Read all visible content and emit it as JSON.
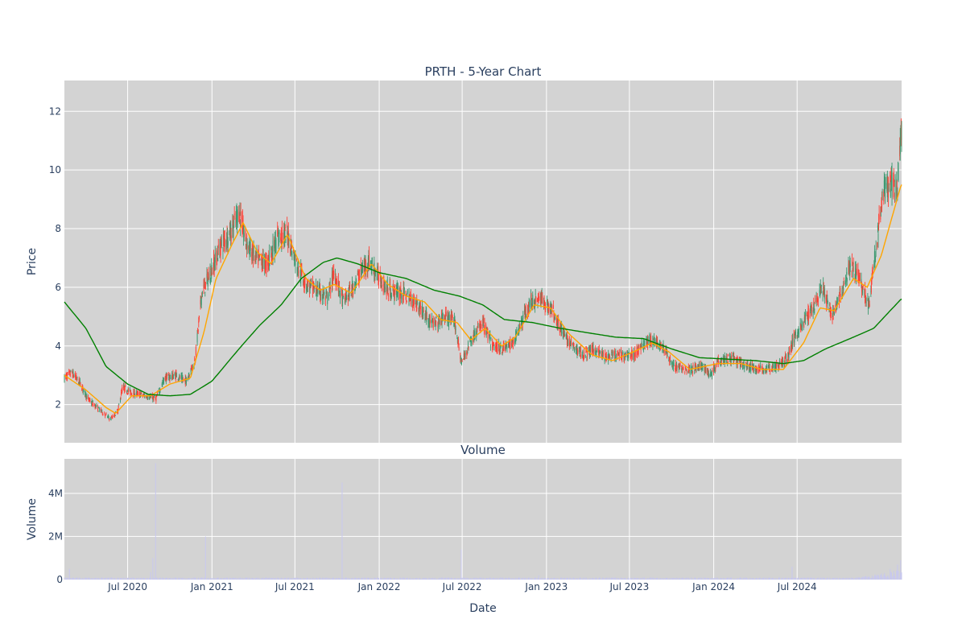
{
  "chart_data": {
    "type": "candlestick",
    "title": "PRTH - 5-Year Chart",
    "price_panel": {
      "ylabel": "Price",
      "ylim": [
        0.7,
        13.05
      ],
      "yticks": [
        2,
        4,
        6,
        8,
        10,
        12
      ],
      "background": "#d3d3d3",
      "grid": true,
      "up_color": "#3d9970",
      "down_color": "#ff4136",
      "ma_short_color": "#ffa500",
      "ma_long_color": "#008000",
      "anchors": [
        [
          "2020-02-14",
          2.9
        ],
        [
          "2020-03-01",
          3.1
        ],
        [
          "2020-03-20",
          2.7
        ],
        [
          "2020-04-05",
          2.2
        ],
        [
          "2020-04-25",
          1.9
        ],
        [
          "2020-05-10",
          1.7
        ],
        [
          "2020-05-25",
          1.5
        ],
        [
          "2020-06-10",
          1.8
        ],
        [
          "2020-06-20",
          2.6
        ],
        [
          "2020-07-10",
          2.4
        ],
        [
          "2020-08-10",
          2.3
        ],
        [
          "2020-09-01",
          2.2
        ],
        [
          "2020-09-20",
          2.9
        ],
        [
          "2020-10-15",
          3.0
        ],
        [
          "2020-11-05",
          2.8
        ],
        [
          "2020-11-25",
          3.5
        ],
        [
          "2020-12-10",
          5.8
        ],
        [
          "2021-01-01",
          6.6
        ],
        [
          "2021-01-20",
          7.4
        ],
        [
          "2021-02-15",
          8.0
        ],
        [
          "2021-03-01",
          8.6
        ],
        [
          "2021-03-15",
          7.6
        ],
        [
          "2021-04-05",
          7.0
        ],
        [
          "2021-05-01",
          6.8
        ],
        [
          "2021-05-25",
          7.7
        ],
        [
          "2021-06-15",
          7.8
        ],
        [
          "2021-07-05",
          6.8
        ],
        [
          "2021-07-25",
          6.1
        ],
        [
          "2021-08-20",
          5.9
        ],
        [
          "2021-09-10",
          5.6
        ],
        [
          "2021-09-25",
          6.5
        ],
        [
          "2021-10-15",
          5.5
        ],
        [
          "2021-11-05",
          6.0
        ],
        [
          "2021-11-25",
          6.6
        ],
        [
          "2021-12-10",
          6.9
        ],
        [
          "2021-12-25",
          6.5
        ],
        [
          "2022-01-20",
          5.9
        ],
        [
          "2022-02-20",
          5.8
        ],
        [
          "2022-03-20",
          5.5
        ],
        [
          "2022-04-10",
          5.1
        ],
        [
          "2022-05-01",
          4.7
        ],
        [
          "2022-05-25",
          5.0
        ],
        [
          "2022-06-15",
          4.8
        ],
        [
          "2022-06-30",
          3.4
        ],
        [
          "2022-07-20",
          4.2
        ],
        [
          "2022-08-15",
          4.8
        ],
        [
          "2022-09-05",
          4.0
        ],
        [
          "2022-09-25",
          3.9
        ],
        [
          "2022-10-20",
          4.1
        ],
        [
          "2022-11-10",
          4.9
        ],
        [
          "2022-11-28",
          5.5
        ],
        [
          "2022-12-20",
          5.6
        ],
        [
          "2023-01-15",
          5.2
        ],
        [
          "2023-02-10",
          4.3
        ],
        [
          "2023-03-05",
          3.9
        ],
        [
          "2023-03-25",
          3.7
        ],
        [
          "2023-04-15",
          3.9
        ],
        [
          "2023-05-10",
          3.6
        ],
        [
          "2023-06-10",
          3.7
        ],
        [
          "2023-07-10",
          3.7
        ],
        [
          "2023-08-05",
          4.1
        ],
        [
          "2023-08-25",
          4.2
        ],
        [
          "2023-09-15",
          3.9
        ],
        [
          "2023-10-05",
          3.3
        ],
        [
          "2023-11-10",
          3.2
        ],
        [
          "2023-12-10",
          3.3
        ],
        [
          "2023-12-25",
          3.0
        ],
        [
          "2024-01-10",
          3.5
        ],
        [
          "2024-02-10",
          3.6
        ],
        [
          "2024-03-10",
          3.3
        ],
        [
          "2024-04-20",
          3.2
        ],
        [
          "2024-05-20",
          3.3
        ],
        [
          "2024-06-10",
          3.6
        ],
        [
          "2024-06-25",
          4.3
        ],
        [
          "2024-07-15",
          4.8
        ],
        [
          "2024-08-10",
          5.5
        ],
        [
          "2024-08-25",
          6.0
        ],
        [
          "2024-09-15",
          5.0
        ],
        [
          "2024-10-05",
          5.8
        ],
        [
          "2024-10-25",
          6.7
        ],
        [
          "2024-11-15",
          6.3
        ],
        [
          "2024-12-05",
          5.4
        ],
        [
          "2024-12-20",
          7.3
        ],
        [
          "2025-01-05",
          9.3
        ],
        [
          "2025-01-25",
          9.5
        ],
        [
          "2025-02-05",
          9.3
        ],
        [
          "2025-02-13",
          11.5
        ]
      ],
      "ma_short_anchors": [
        [
          "2020-02-14",
          3.0
        ],
        [
          "2020-04-01",
          2.5
        ],
        [
          "2020-05-15",
          1.9
        ],
        [
          "2020-06-05",
          1.7
        ],
        [
          "2020-07-10",
          2.3
        ],
        [
          "2020-08-20",
          2.3
        ],
        [
          "2020-10-01",
          2.7
        ],
        [
          "2020-11-15",
          2.9
        ],
        [
          "2020-12-15",
          4.5
        ],
        [
          "2021-01-10",
          6.3
        ],
        [
          "2021-02-15",
          7.5
        ],
        [
          "2021-03-10",
          8.2
        ],
        [
          "2021-04-10",
          7.2
        ],
        [
          "2021-05-10",
          6.8
        ],
        [
          "2021-06-15",
          7.8
        ],
        [
          "2021-07-25",
          6.3
        ],
        [
          "2021-08-25",
          5.9
        ],
        [
          "2021-09-25",
          6.1
        ],
        [
          "2021-11-01",
          5.8
        ],
        [
          "2021-12-15",
          6.8
        ],
        [
          "2022-01-20",
          6.1
        ],
        [
          "2022-03-01",
          5.7
        ],
        [
          "2022-04-10",
          5.5
        ],
        [
          "2022-05-15",
          4.9
        ],
        [
          "2022-06-20",
          4.8
        ],
        [
          "2022-07-20",
          4.2
        ],
        [
          "2022-08-20",
          4.6
        ],
        [
          "2022-09-25",
          4.0
        ],
        [
          "2022-10-25",
          4.3
        ],
        [
          "2022-12-05",
          5.4
        ],
        [
          "2023-01-10",
          5.3
        ],
        [
          "2023-02-20",
          4.4
        ],
        [
          "2023-04-10",
          3.7
        ],
        [
          "2023-05-25",
          3.5
        ],
        [
          "2023-07-10",
          3.8
        ],
        [
          "2023-08-20",
          4.1
        ],
        [
          "2023-09-25",
          3.8
        ],
        [
          "2023-11-10",
          3.2
        ],
        [
          "2024-01-10",
          3.4
        ],
        [
          "2024-03-01",
          3.4
        ],
        [
          "2024-04-15",
          3.2
        ],
        [
          "2024-06-01",
          3.2
        ],
        [
          "2024-07-15",
          4.1
        ],
        [
          "2024-08-20",
          5.3
        ],
        [
          "2024-09-20",
          5.2
        ],
        [
          "2024-11-01",
          6.3
        ],
        [
          "2024-12-01",
          6.0
        ],
        [
          "2025-01-01",
          7.1
        ],
        [
          "2025-02-13",
          9.5
        ]
      ],
      "ma_long_anchors": [
        [
          "2020-02-14",
          5.5
        ],
        [
          "2020-04-01",
          4.6
        ],
        [
          "2020-05-15",
          3.3
        ],
        [
          "2020-07-01",
          2.7
        ],
        [
          "2020-08-15",
          2.35
        ],
        [
          "2020-10-01",
          2.3
        ],
        [
          "2020-11-15",
          2.35
        ],
        [
          "2021-01-01",
          2.8
        ],
        [
          "2021-03-01",
          3.9
        ],
        [
          "2021-04-15",
          4.7
        ],
        [
          "2021-06-01",
          5.4
        ],
        [
          "2021-07-15",
          6.3
        ],
        [
          "2021-09-01",
          6.85
        ],
        [
          "2021-10-01",
          7.0
        ],
        [
          "2021-11-15",
          6.8
        ],
        [
          "2022-01-01",
          6.5
        ],
        [
          "2022-03-01",
          6.3
        ],
        [
          "2022-05-01",
          5.9
        ],
        [
          "2022-06-25",
          5.7
        ],
        [
          "2022-08-15",
          5.4
        ],
        [
          "2022-10-01",
          4.9
        ],
        [
          "2022-12-01",
          4.8
        ],
        [
          "2023-02-01",
          4.6
        ],
        [
          "2023-04-01",
          4.45
        ],
        [
          "2023-06-01",
          4.3
        ],
        [
          "2023-08-01",
          4.25
        ],
        [
          "2023-10-01",
          3.9
        ],
        [
          "2023-12-01",
          3.6
        ],
        [
          "2024-02-01",
          3.55
        ],
        [
          "2024-04-01",
          3.5
        ],
        [
          "2024-06-01",
          3.4
        ],
        [
          "2024-07-15",
          3.5
        ],
        [
          "2024-09-01",
          3.9
        ],
        [
          "2024-11-01",
          4.3
        ],
        [
          "2024-12-15",
          4.6
        ],
        [
          "2025-02-13",
          5.6
        ]
      ]
    },
    "volume_panel": {
      "subtitle": "Volume",
      "ylabel": "Volume",
      "ylim": [
        0,
        5600000
      ],
      "yticks": [
        0,
        2000000,
        4000000
      ],
      "ytick_labels": [
        "0",
        "2M",
        "4M"
      ],
      "background": "#d3d3d3",
      "bar_color": "#c8c8ee",
      "spikes": [
        [
          "2020-02-25",
          500000
        ],
        [
          "2020-06-28",
          300000
        ],
        [
          "2020-07-25",
          250000
        ],
        [
          "2020-08-20",
          350000
        ],
        [
          "2020-08-25",
          1000000
        ],
        [
          "2020-08-31",
          5400000
        ],
        [
          "2020-09-05",
          900000
        ],
        [
          "2020-12-18",
          2000000
        ],
        [
          "2021-10-12",
          4500000
        ],
        [
          "2022-02-20",
          250000
        ],
        [
          "2022-06-29",
          1400000
        ],
        [
          "2022-12-15",
          200000
        ],
        [
          "2024-06-20",
          600000
        ],
        [
          "2025-01-20",
          500000
        ],
        [
          "2025-02-05",
          700000
        ],
        [
          "2025-02-12",
          900000
        ]
      ]
    },
    "x_axis": {
      "xlabel": "Date",
      "range": [
        "2020-02-14",
        "2025-02-14"
      ],
      "ticks": [
        {
          "date": "2020-07-01",
          "label": "Jul 2020"
        },
        {
          "date": "2021-01-01",
          "label": "Jan 2021"
        },
        {
          "date": "2021-07-01",
          "label": "Jul 2021"
        },
        {
          "date": "2022-01-01",
          "label": "Jan 2022"
        },
        {
          "date": "2022-07-01",
          "label": "Jul 2022"
        },
        {
          "date": "2023-01-01",
          "label": "Jan 2023"
        },
        {
          "date": "2023-07-01",
          "label": "Jul 2023"
        },
        {
          "date": "2024-01-01",
          "label": "Jan 2024"
        },
        {
          "date": "2024-07-01",
          "label": "Jul 2024"
        }
      ]
    }
  }
}
